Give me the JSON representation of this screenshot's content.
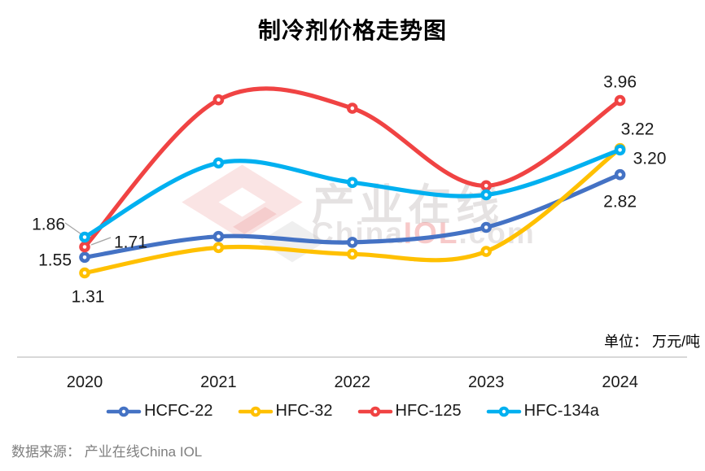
{
  "title": "制冷剂价格走势图",
  "unit_label": "单位： 万元/吨",
  "source": "数据来源： 产业在线China IOL",
  "watermark": {
    "cn": "产业在线",
    "en_prefix": "China",
    "en_mid": "IOL",
    "en_suffix": ".com"
  },
  "colors": {
    "hcfc22": "#4472C4",
    "hfc32": "#FFC000",
    "hfc125": "#F04343",
    "hfc134a": "#00B0F0",
    "axis_line": "#D8D8D8",
    "leader_line": "#A6A6A6",
    "label_text": "#1a1a1a",
    "source_text": "#7f7f7f"
  },
  "chart_data": {
    "type": "line",
    "smoothed": true,
    "grid": false,
    "legend_position": "bottom",
    "categories": [
      "2020",
      "2021",
      "2022",
      "2023",
      "2024"
    ],
    "ylim": [
      1.0,
      4.4
    ],
    "ylabel": "万元/吨",
    "series": [
      {
        "name": "HCFC-22",
        "color": "#4472C4",
        "values": [
          1.55,
          1.87,
          1.78,
          2.01,
          2.82
        ]
      },
      {
        "name": "HFC-32",
        "color": "#FFC000",
        "values": [
          1.31,
          1.7,
          1.6,
          1.64,
          3.22
        ]
      },
      {
        "name": "HFC-125",
        "color": "#F04343",
        "values": [
          1.71,
          3.97,
          3.84,
          2.65,
          3.96
        ]
      },
      {
        "name": "HFC-134a",
        "color": "#00B0F0",
        "values": [
          1.86,
          3.0,
          2.7,
          2.51,
          3.2
        ]
      }
    ],
    "data_labels": [
      {
        "series": "HCFC-22",
        "category": "2020",
        "text": "1.55"
      },
      {
        "series": "HCFC-22",
        "category": "2024",
        "text": "2.82"
      },
      {
        "series": "HFC-32",
        "category": "2020",
        "text": "1.31"
      },
      {
        "series": "HFC-32",
        "category": "2024",
        "text": "3.22"
      },
      {
        "series": "HFC-125",
        "category": "2020",
        "text": "1.71"
      },
      {
        "series": "HFC-125",
        "category": "2024",
        "text": "3.96"
      },
      {
        "series": "HFC-134a",
        "category": "2020",
        "text": "1.86"
      },
      {
        "series": "HFC-134a",
        "category": "2024",
        "text": "3.20"
      }
    ]
  }
}
